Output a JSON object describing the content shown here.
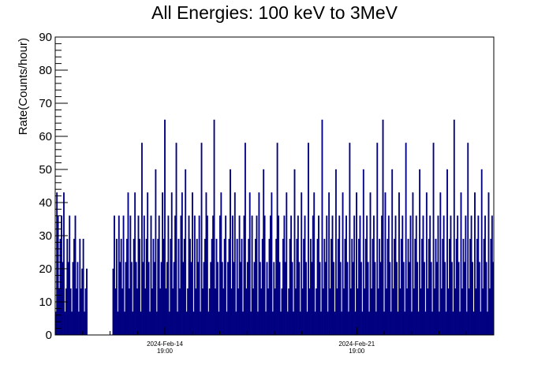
{
  "chart_data": {
    "type": "bar",
    "title": "All Energies:  100 keV to 3MeV",
    "xlabel": "",
    "ylabel": "Rate(Counts/hour)",
    "ylim": [
      0,
      90
    ],
    "yticks": [
      "0",
      "10",
      "20",
      "30",
      "40",
      "50",
      "60",
      "70",
      "80",
      "90"
    ],
    "xticks": [
      {
        "date": "2024-Feb-14",
        "time": "19:00"
      },
      {
        "date": "2024-Feb-21",
        "time": "19:00"
      }
    ],
    "xlim": [
      "2024-Feb-10 19:00",
      "2024-Feb-26 19:00"
    ],
    "gap": [
      "2024-Feb-11 02:00",
      "2024-Feb-11 21:00"
    ],
    "bin_hours": 1,
    "color": "#000080",
    "values": [
      7,
      43,
      36,
      14,
      29,
      36,
      22,
      43,
      7,
      14,
      29,
      22,
      36,
      14,
      7,
      22,
      29,
      36,
      14,
      22,
      7,
      29,
      14,
      20,
      29,
      7,
      14,
      20,
      0,
      0,
      0,
      0,
      0,
      0,
      0,
      0,
      0,
      0,
      0,
      0,
      0,
      0,
      0,
      0,
      0,
      0,
      0,
      0,
      0,
      0,
      20,
      36,
      14,
      29,
      7,
      36,
      22,
      29,
      14,
      36,
      7,
      22,
      29,
      43,
      14,
      36,
      22,
      7,
      29,
      43,
      22,
      14,
      36,
      29,
      7,
      58,
      22,
      36,
      14,
      29,
      43,
      22,
      7,
      36,
      14,
      29,
      22,
      50,
      7,
      29,
      36,
      14,
      22,
      43,
      29,
      65,
      14,
      22,
      36,
      7,
      29,
      43,
      14,
      22,
      36,
      58,
      7,
      29,
      14,
      36,
      43,
      22,
      29,
      50,
      7,
      14,
      36,
      29,
      22,
      43,
      7,
      36,
      14,
      29,
      22,
      36,
      7,
      58,
      14,
      22,
      29,
      43,
      36,
      7,
      14,
      22,
      29,
      36,
      65,
      14,
      29,
      22,
      7,
      36,
      43,
      22,
      14,
      29,
      36,
      7,
      22,
      29,
      50,
      14,
      36,
      22,
      43,
      7,
      29,
      14,
      36,
      22,
      29,
      7,
      36,
      58,
      14,
      22,
      29,
      43,
      7,
      36,
      14,
      22,
      29,
      36,
      7,
      43,
      22,
      14,
      29,
      50,
      36,
      7,
      22,
      14,
      29,
      36,
      43,
      7,
      22,
      14,
      29,
      58,
      36,
      22,
      7,
      14,
      29,
      36,
      22,
      43,
      7,
      14,
      29,
      36,
      22,
      7,
      50,
      14,
      29,
      36,
      22,
      7,
      43,
      14,
      29,
      36,
      22,
      7,
      58,
      14,
      29,
      22,
      36,
      43,
      7,
      14,
      29,
      36,
      22,
      7,
      65,
      14,
      29,
      22,
      36,
      7,
      43,
      14,
      29,
      36,
      22,
      7,
      50,
      14,
      29,
      36,
      22,
      7,
      43,
      14,
      29,
      36,
      22,
      7,
      58,
      14,
      29,
      22,
      36,
      7,
      43,
      14,
      29,
      36,
      22,
      7,
      50,
      14,
      29,
      36,
      22,
      7,
      43,
      14,
      29,
      36,
      22,
      7,
      58,
      14,
      29,
      22,
      36,
      65,
      7,
      43,
      14,
      29,
      36,
      22,
      7,
      50,
      14,
      29,
      36,
      22,
      7,
      43,
      14,
      29,
      36,
      22,
      7,
      58,
      14,
      29,
      22,
      36,
      7,
      43,
      14,
      29,
      36,
      22,
      7,
      50,
      14,
      29,
      36,
      22,
      7,
      43,
      14,
      29,
      36,
      22,
      7,
      58,
      14,
      29,
      22,
      36,
      7,
      43,
      14,
      29,
      36,
      22,
      7,
      50,
      14,
      29,
      36,
      22,
      7,
      65,
      14,
      29,
      36,
      22,
      7,
      43,
      14,
      29,
      22,
      36,
      7,
      58,
      14,
      29,
      36,
      22,
      7,
      43,
      14,
      29,
      36,
      22,
      7,
      50,
      14,
      29,
      36,
      22,
      7,
      43,
      14,
      29,
      36,
      22
    ]
  }
}
